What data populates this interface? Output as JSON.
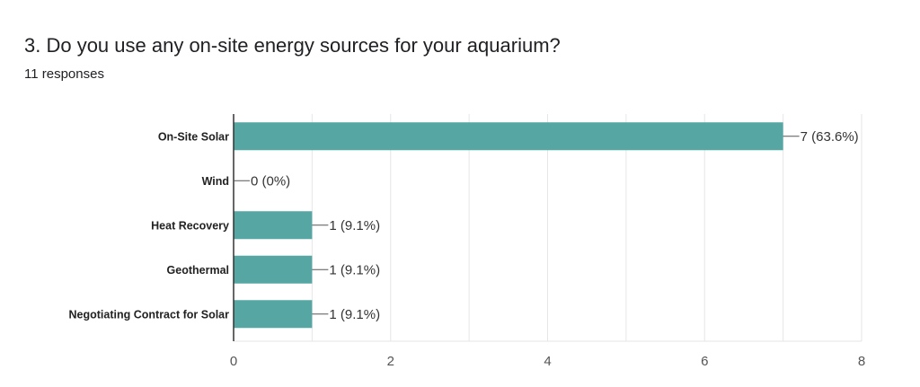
{
  "question": {
    "title": "3. Do you use any on-site energy sources for your aquarium?",
    "responses": "11 responses"
  },
  "colors": {
    "bar": "#56a6a3",
    "grid": "#e6e6e6",
    "axis": "#333333"
  },
  "chart_data": {
    "type": "bar",
    "orientation": "horizontal",
    "categories": [
      "On-Site Solar",
      "Wind",
      "Heat Recovery",
      "Geothermal",
      "Negotiating Contract for Solar"
    ],
    "values": [
      7,
      0,
      1,
      1,
      1
    ],
    "data_labels": [
      "7 (63.6%)",
      "0 (0%)",
      "1 (9.1%)",
      "1 (9.1%)",
      "1 (9.1%)"
    ],
    "xlim": [
      0,
      8
    ],
    "xticks": [
      0,
      2,
      4,
      6,
      8
    ],
    "grid": true,
    "title": "",
    "xlabel": "",
    "ylabel": ""
  }
}
